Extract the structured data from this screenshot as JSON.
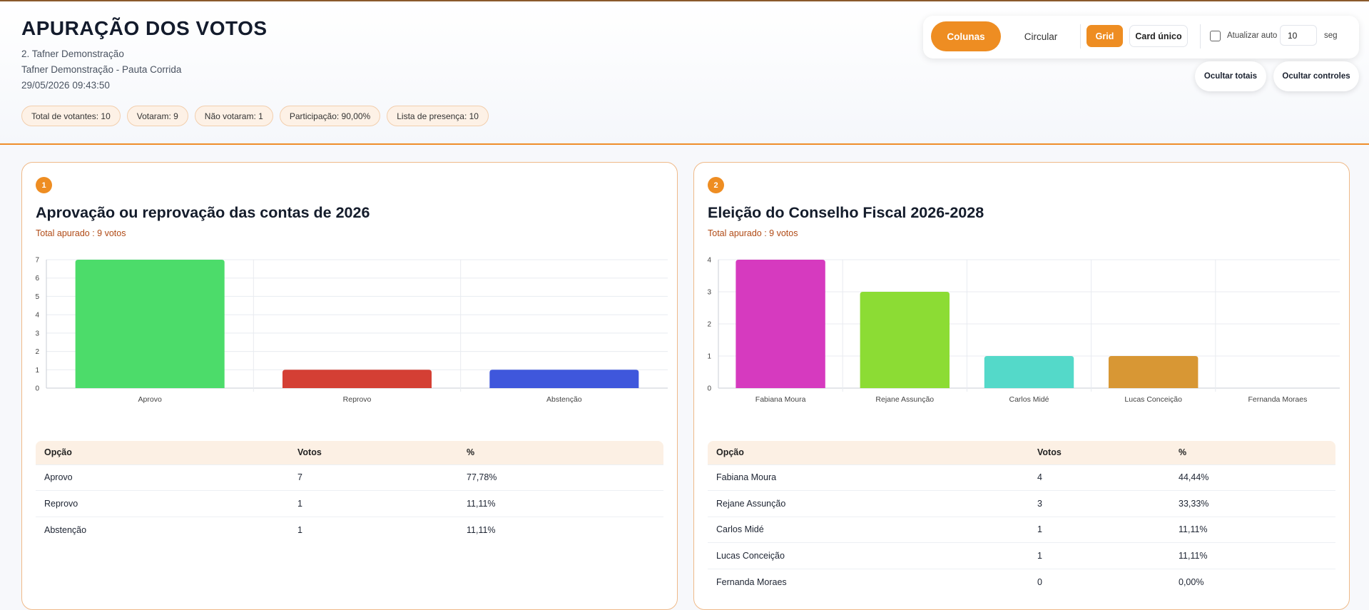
{
  "header": {
    "title": "APURAÇÃO DOS VOTOS",
    "line1": "2. Tafner Demonstração",
    "line2": "Tafner Demonstração - Pauta Corrida",
    "line3": "29/05/2026 09:43:50",
    "pills": [
      "Total de votantes: 10",
      "Votaram: 9",
      "Não votaram: 1",
      "Participação: 90,00%",
      "Lista de presença: 10"
    ]
  },
  "controls": {
    "colunas": "Colunas",
    "circular": "Circular",
    "grid": "Grid",
    "card_unico": "Card único",
    "auto_label": "Atualizar auto",
    "auto_checked": false,
    "interval_value": "10",
    "seg_label": "seg",
    "ocultar_totais": "Ocultar totais",
    "ocultar_controles": "Ocultar controles",
    "accent_color": "#ee8d22"
  },
  "cards": [
    {
      "number": "1",
      "title": "Aprovação ou reprovação das contas de 2026",
      "total": "Total apurado : 9 votos",
      "table_headers": [
        "Opção",
        "Votos",
        "%"
      ],
      "rows": [
        [
          "Aprovo",
          "7",
          "77,78%"
        ],
        [
          "Reprovo",
          "1",
          "11,11%"
        ],
        [
          "Abstenção",
          "1",
          "11,11%"
        ]
      ]
    },
    {
      "number": "2",
      "title": "Eleição do Conselho Fiscal 2026-2028",
      "total": "Total apurado : 9 votos",
      "table_headers": [
        "Opção",
        "Votos",
        "%"
      ],
      "rows": [
        [
          "Fabiana Moura",
          "4",
          "44,44%"
        ],
        [
          "Rejane Assunção",
          "3",
          "33,33%"
        ],
        [
          "Carlos Midé",
          "1",
          "11,11%"
        ],
        [
          "Lucas Conceição",
          "1",
          "11,11%"
        ],
        [
          "Fernanda Moraes",
          "0",
          "0,00%"
        ]
      ]
    }
  ],
  "chart_data": [
    {
      "type": "bar",
      "categories": [
        "Aprovo",
        "Reprovo",
        "Abstenção"
      ],
      "values": [
        7,
        1,
        1
      ],
      "colors": [
        "#4cdc6a",
        "#d43f34",
        "#3f57dc"
      ],
      "ylim": [
        0,
        7
      ],
      "yticks": [
        "0",
        "1",
        "2",
        "3",
        "4",
        "5",
        "6",
        "7"
      ],
      "grid": true
    },
    {
      "type": "bar",
      "categories": [
        "Fabiana Moura",
        "Rejane Assunção",
        "Carlos Midé",
        "Lucas Conceição",
        "Fernanda Moraes"
      ],
      "values": [
        4,
        3,
        1,
        1,
        0
      ],
      "colors": [
        "#d63abf",
        "#8cdc34",
        "#54d9c9",
        "#d89734",
        "#7a5ad8"
      ],
      "ylim": [
        0,
        4
      ],
      "yticks": [
        "0",
        "1",
        "2",
        "3",
        "4"
      ],
      "grid": true
    }
  ]
}
